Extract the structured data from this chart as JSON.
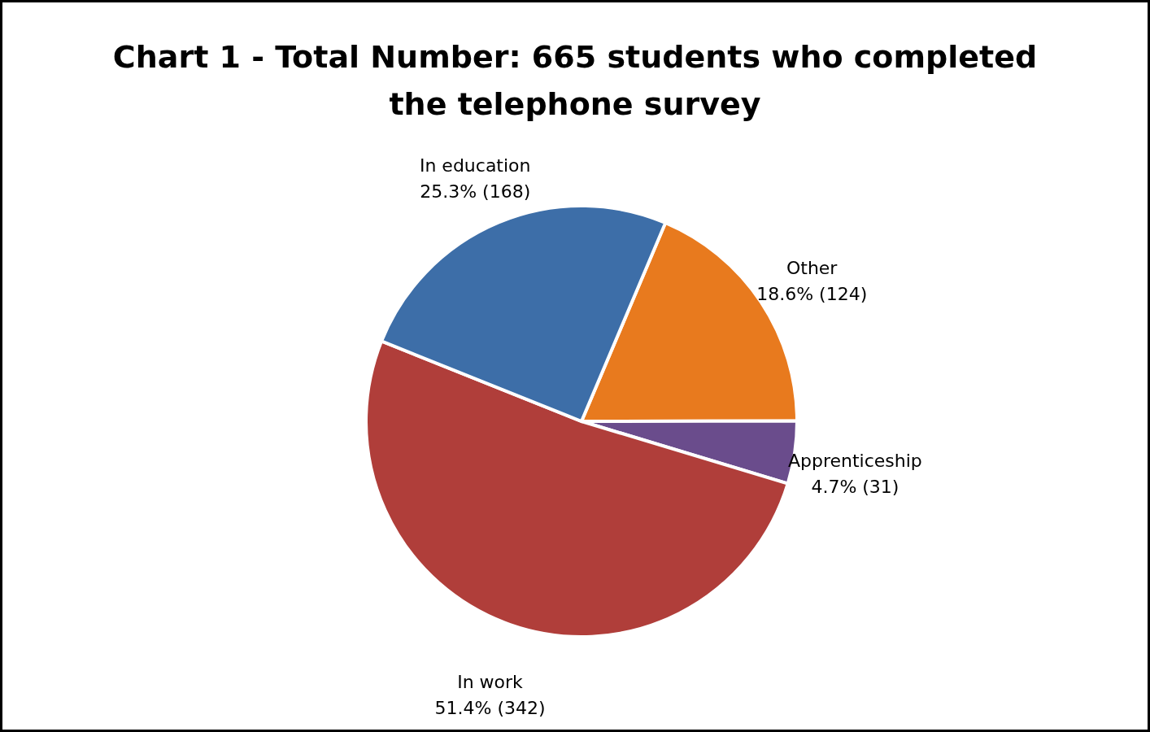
{
  "chart_data": {
    "type": "pie",
    "title": "Chart 1 - Total Number: 665 students who completed the telephone survey",
    "categories": [
      "Other",
      "Apprenticeship",
      "In work",
      "In education"
    ],
    "values": [
      18.6,
      4.7,
      51.4,
      25.3
    ],
    "value_labels": [
      "18.6% (124)",
      "4.7% (31)",
      "51.4% (342)",
      "25.3% (168)"
    ],
    "colors": [
      "#e87a1e",
      "#6a4c8c",
      "#b03e3a",
      "#3d6ea8"
    ],
    "legend": false
  }
}
